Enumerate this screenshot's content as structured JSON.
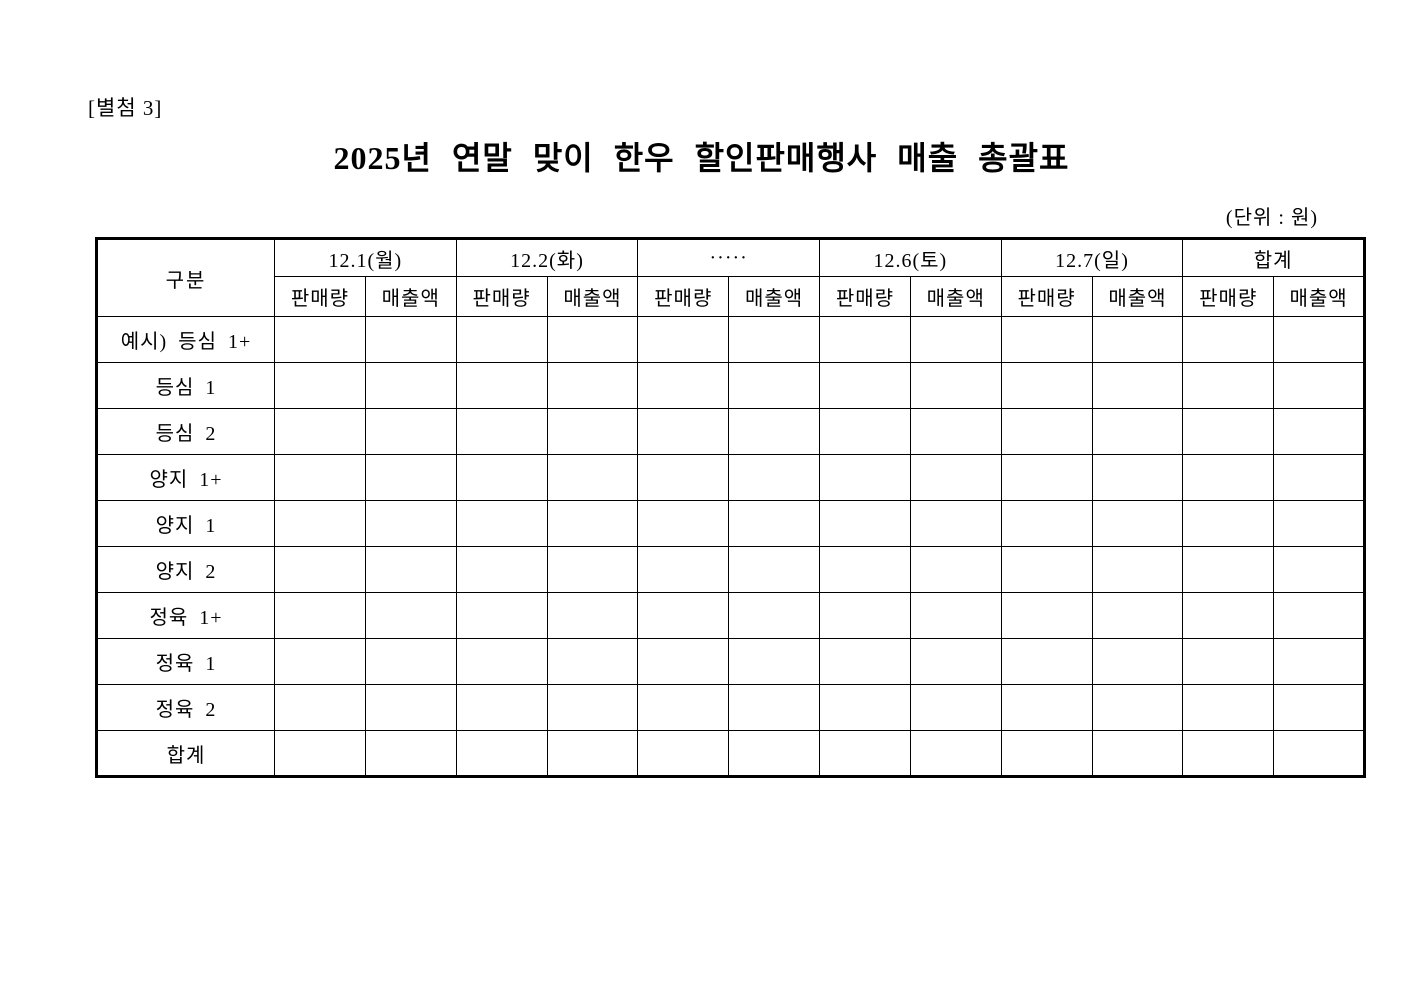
{
  "page": {
    "attachment_label": "[별첨 3]",
    "title": "2025년 연말 맞이 한우 할인판매행사 매출 총괄표",
    "unit_note": "(단위 : 원)",
    "text_color": "#000000",
    "background_color": "#ffffff",
    "border_color": "#000000"
  },
  "table": {
    "corner_header": "구분",
    "column_groups": [
      {
        "label": "12.1(월)"
      },
      {
        "label": "12.2(화)"
      },
      {
        "label": "·····"
      },
      {
        "label": "12.6(토)"
      },
      {
        "label": "12.7(일)"
      },
      {
        "label": "합계"
      }
    ],
    "sub_headers": [
      "판매량",
      "매출액"
    ],
    "rows": [
      {
        "label": "예시) 등심 1+",
        "values": [
          "",
          "",
          "",
          "",
          "",
          "",
          "",
          "",
          "",
          "",
          "",
          ""
        ]
      },
      {
        "label": "등심 1",
        "values": [
          "",
          "",
          "",
          "",
          "",
          "",
          "",
          "",
          "",
          "",
          "",
          ""
        ]
      },
      {
        "label": "등심 2",
        "values": [
          "",
          "",
          "",
          "",
          "",
          "",
          "",
          "",
          "",
          "",
          "",
          ""
        ]
      },
      {
        "label": "양지 1+",
        "values": [
          "",
          "",
          "",
          "",
          "",
          "",
          "",
          "",
          "",
          "",
          "",
          ""
        ]
      },
      {
        "label": "양지 1",
        "values": [
          "",
          "",
          "",
          "",
          "",
          "",
          "",
          "",
          "",
          "",
          "",
          ""
        ]
      },
      {
        "label": "양지 2",
        "values": [
          "",
          "",
          "",
          "",
          "",
          "",
          "",
          "",
          "",
          "",
          "",
          ""
        ]
      },
      {
        "label": "정육 1+",
        "values": [
          "",
          "",
          "",
          "",
          "",
          "",
          "",
          "",
          "",
          "",
          "",
          ""
        ]
      },
      {
        "label": "정육 1",
        "values": [
          "",
          "",
          "",
          "",
          "",
          "",
          "",
          "",
          "",
          "",
          "",
          ""
        ]
      },
      {
        "label": "정육 2",
        "values": [
          "",
          "",
          "",
          "",
          "",
          "",
          "",
          "",
          "",
          "",
          "",
          ""
        ]
      },
      {
        "label": "합계",
        "values": [
          "",
          "",
          "",
          "",
          "",
          "",
          "",
          "",
          "",
          "",
          "",
          ""
        ]
      }
    ]
  }
}
